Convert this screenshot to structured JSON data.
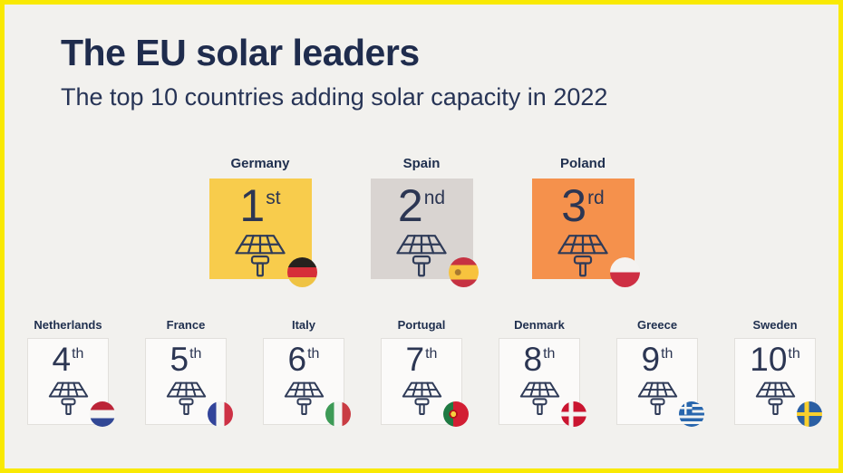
{
  "header": {
    "title": "The EU solar leaders",
    "subtitle": "The top 10 countries adding solar capacity in 2022"
  },
  "colors": {
    "page_border": "#f9e903",
    "background": "#f2f1ee",
    "title_navy": "#1f2c4d",
    "rank_navy": "#2c3653",
    "icon_stroke": "#2f3b58",
    "small_card_bg": "#fbfaf9",
    "small_card_border": "#e2e0dc"
  },
  "countries": [
    {
      "name": "Germany",
      "rank": "1",
      "suffix": "st",
      "tier": "featured",
      "card_color": "#f8cc4c",
      "flag_css": "linear-gradient(to bottom, #26221e 0 34%, #d62f39 34% 67%, #efc343 67% 100%)"
    },
    {
      "name": "Spain",
      "rank": "2",
      "suffix": "nd",
      "tier": "featured",
      "card_color": "#d9d4d1",
      "flag_css": "radial-gradient(circle at 31% 50%, #a8792f 0 3px, rgba(0,0,0,0) 3.8px), linear-gradient(to bottom, #c63242 0 26%, #f7c33e 26% 74%, #c63242 74% 100%)"
    },
    {
      "name": "Poland",
      "rank": "3",
      "suffix": "rd",
      "tier": "featured",
      "card_color": "#f5914c",
      "flag_css": "linear-gradient(to bottom, #f4f2f0 0 50%, #ce2f43 50% 100%)"
    },
    {
      "name": "Netherlands",
      "rank": "4",
      "suffix": "th",
      "tier": "small",
      "card_color": "",
      "flag_css": "linear-gradient(to bottom, #bc2438 0 34%, #f4f4f2 34% 66%, #324895 66% 100%)"
    },
    {
      "name": "France",
      "rank": "5",
      "suffix": "th",
      "tier": "small",
      "card_color": "",
      "flag_css": "linear-gradient(to right, #32449a 0 34%, #f4f4f2 34% 66%, #cd3145 66% 100%)"
    },
    {
      "name": "Italy",
      "rank": "6",
      "suffix": "th",
      "tier": "small",
      "card_color": "",
      "flag_css": "linear-gradient(to right, #3d9a56 0 34%, #f4f4f2 34% 66%, #c93c43 66% 100%)"
    },
    {
      "name": "Portugal",
      "rank": "7",
      "suffix": "th",
      "tier": "small",
      "card_color": "",
      "flag_css": "radial-gradient(circle at 40% 50%, #f6ce3e 0 3px, #b5121b 3px 4.6px, rgba(0,0,0,0) 5px), linear-gradient(to right, #1f7a43 0 40%, #d21e33 40% 100%)"
    },
    {
      "name": "Denmark",
      "rank": "8",
      "suffix": "th",
      "tier": "small",
      "card_color": "",
      "flag_css": "linear-gradient(to right, rgba(0,0,0,0) 0 31%, #f4f4f2 31% 49%, rgba(0,0,0,0) 49%), linear-gradient(to bottom, rgba(0,0,0,0) 0 41%, #f4f4f2 41% 59%, rgba(0,0,0,0) 59%), linear-gradient(#ca1530, #ca1530)"
    },
    {
      "name": "Greece",
      "rank": "9",
      "suffix": "th",
      "tier": "small",
      "card_color": "",
      "flag_css": "linear-gradient(to right, rgba(0,0,0,0) 0 40%, #f4f4f2 40% 58%, rgba(0,0,0,0) 58%) left top / 52% 52% no-repeat, linear-gradient(to bottom, rgba(0,0,0,0) 0 40%, #f4f4f2 40% 58%, rgba(0,0,0,0) 58%) left top / 52% 52% no-repeat, linear-gradient(#2866ad, #2866ad) left top / 52% 52% no-repeat, repeating-linear-gradient(#2866ad 0 11.12%, #f4f4f2 11.12% 22.24%)"
    },
    {
      "name": "Sweden",
      "rank": "10",
      "suffix": "th",
      "tier": "small",
      "card_color": "",
      "flag_css": "linear-gradient(to right, rgba(0,0,0,0) 0 31%, #f8cf2d 31% 49%, rgba(0,0,0,0) 49%), linear-gradient(to bottom, rgba(0,0,0,0) 0 42%, #f8cf2d 42% 58%, rgba(0,0,0,0) 58%), linear-gradient(#2b5fa3, #2b5fa3)"
    }
  ],
  "chart_data": {
    "type": "table",
    "title": "The EU solar leaders",
    "subtitle": "The top 10 countries adding solar capacity in 2022",
    "value_label": "rank",
    "categories": [
      "Germany",
      "Spain",
      "Poland",
      "Netherlands",
      "France",
      "Italy",
      "Portugal",
      "Denmark",
      "Greece",
      "Sweden"
    ],
    "values": [
      1,
      2,
      3,
      4,
      5,
      6,
      7,
      8,
      9,
      10
    ],
    "legend": "none",
    "layout": "top 3 as large highlighted tiles, ranks 4-10 as small tiles in one row"
  }
}
